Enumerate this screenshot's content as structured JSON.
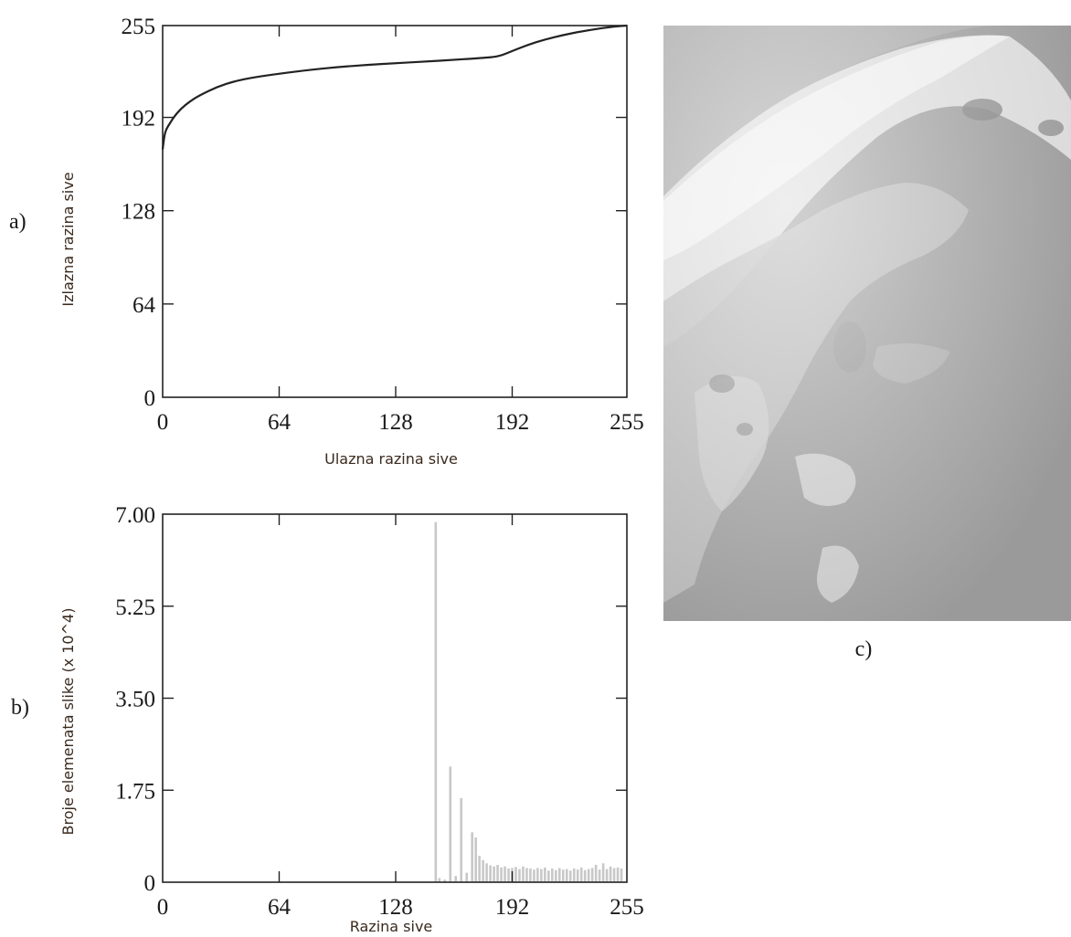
{
  "chart_data": [
    {
      "panel_label": "a)",
      "type": "line",
      "xlabel": "Ulazna razina sive",
      "ylabel": "Izlazna razina sive",
      "xlim": [
        0,
        255
      ],
      "ylim": [
        0,
        255
      ],
      "x_ticks": [
        0,
        64,
        128,
        192,
        255
      ],
      "y_ticks": [
        0,
        64,
        128,
        192,
        255
      ],
      "grid": false,
      "series": [
        {
          "x": [
            0,
            1,
            2,
            4,
            6,
            10,
            15,
            20,
            30,
            40,
            50,
            64,
            80,
            96,
            112,
            128,
            144,
            160,
            176,
            182,
            186,
            190,
            200,
            210,
            220,
            230,
            240,
            248,
            255
          ],
          "y": [
            170,
            180,
            184,
            188,
            192,
            198,
            203,
            207,
            213,
            217,
            219.5,
            222,
            224.5,
            226.5,
            228,
            229.2,
            230.3,
            231.5,
            232.8,
            233.5,
            234.5,
            236.5,
            241.5,
            245.5,
            248.5,
            251,
            253,
            254.3,
            255
          ]
        }
      ]
    },
    {
      "panel_label": "b)",
      "type": "bar",
      "xlabel": "Razina sive",
      "ylabel": "Broje elemenata slike (x 10^4)",
      "xlim": [
        0,
        255
      ],
      "ylim": [
        0,
        7
      ],
      "x_ticks": [
        0,
        64,
        128,
        192,
        255
      ],
      "y_ticks": [
        "0",
        "1.75",
        "3.50",
        "5.25",
        "7.00"
      ],
      "y_tick_values": [
        0,
        1.75,
        3.5,
        5.25,
        7.0
      ],
      "grid": false,
      "bar_color": "#c8c8c8",
      "x": [
        150,
        152,
        155,
        158,
        161,
        164,
        167,
        170,
        172,
        174,
        176,
        178,
        180,
        182,
        184,
        186,
        188,
        190,
        192,
        194,
        196,
        198,
        200,
        202,
        204,
        206,
        208,
        210,
        212,
        214,
        216,
        218,
        220,
        222,
        224,
        226,
        228,
        230,
        232,
        234,
        236,
        238,
        240,
        242,
        244,
        246,
        248,
        250,
        252
      ],
      "values": [
        6.85,
        0.08,
        0.05,
        2.2,
        0.12,
        1.6,
        0.18,
        0.95,
        0.85,
        0.5,
        0.42,
        0.36,
        0.32,
        0.3,
        0.33,
        0.28,
        0.3,
        0.26,
        0.27,
        0.29,
        0.25,
        0.3,
        0.27,
        0.26,
        0.24,
        0.27,
        0.25,
        0.28,
        0.22,
        0.26,
        0.23,
        0.27,
        0.24,
        0.25,
        0.22,
        0.26,
        0.24,
        0.28,
        0.23,
        0.25,
        0.27,
        0.33,
        0.24,
        0.36,
        0.25,
        0.3,
        0.27,
        0.28,
        0.26
      ]
    }
  ],
  "image_panel": {
    "panel_label": "c)",
    "background_color": "#9a9a9a",
    "highlight_color": "#e4e4e4"
  }
}
